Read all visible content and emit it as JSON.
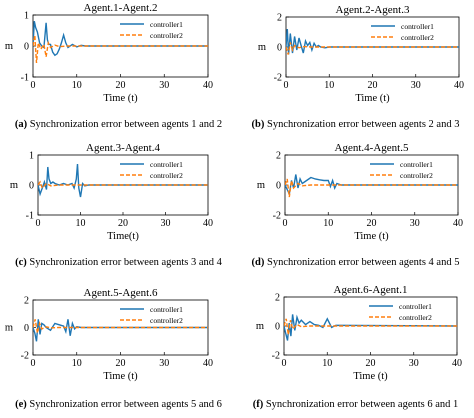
{
  "colors": {
    "controller1": "#1f77b4",
    "controller2": "#ff7f0e",
    "axis": "#000000",
    "background": "#ffffff"
  },
  "chart_data": [
    {
      "type": "line",
      "title": "Agent.1-Agent.2",
      "xlabel": "Time (t)",
      "ylabel": "m",
      "xlim": [
        0,
        40
      ],
      "ylim": [
        -1,
        1
      ],
      "xticks": [
        "0",
        "10",
        "20",
        "30",
        "40"
      ],
      "yticks": [
        "-1",
        "0",
        "1"
      ],
      "legend_position": "top-right",
      "caption_label": "(a)",
      "caption_text": "Synchronization error between agents 1 and 2",
      "series": [
        {
          "name": "controller1",
          "style": "solid",
          "x": [
            0,
            0.3,
            0.6,
            1.0,
            1.5,
            2.0,
            2.5,
            3.0,
            3.3,
            3.6,
            4.0,
            4.5,
            5.0,
            5.5,
            6.0,
            6.5,
            7.0,
            7.5,
            8.0,
            9.0,
            10,
            11,
            12,
            40
          ],
          "y": [
            0,
            0.8,
            0.6,
            0.45,
            0.1,
            0,
            -0.05,
            0.75,
            0.2,
            0.05,
            0.05,
            -0.2,
            -0.3,
            -0.25,
            -0.1,
            0.1,
            0.35,
            0.1,
            -0.05,
            0.05,
            -0.03,
            0.02,
            0,
            0
          ]
        },
        {
          "name": "controller2",
          "style": "dashed",
          "x": [
            0,
            0.4,
            0.8,
            1.2,
            1.8,
            2.5,
            3.0,
            3.5,
            4.0,
            5.0,
            6.0,
            8.0,
            40
          ],
          "y": [
            0,
            0.35,
            -0.55,
            0.1,
            -0.1,
            0.05,
            -0.35,
            0.1,
            -0.05,
            0.03,
            -0.02,
            0,
            0
          ]
        }
      ]
    },
    {
      "type": "line",
      "title": "Agent.2-Agent.3",
      "xlabel": "Time (t)",
      "ylabel": "m",
      "xlim": [
        0,
        40
      ],
      "ylim": [
        -2,
        2
      ],
      "xticks": [
        "0",
        "10",
        "20",
        "30",
        "40"
      ],
      "yticks": [
        "-2",
        "0",
        "2"
      ],
      "legend_position": "top-right",
      "caption_label": "(b)",
      "caption_text": "Synchronization error between agents 2 and 3",
      "series": [
        {
          "name": "controller1",
          "style": "solid",
          "x": [
            0,
            0.3,
            0.6,
            1.0,
            1.5,
            2.0,
            2.5,
            3.0,
            3.5,
            4.0,
            4.5,
            5.0,
            5.5,
            6.0,
            6.5,
            7.0,
            7.5,
            8.0,
            9.0,
            10,
            40
          ],
          "y": [
            0,
            1.2,
            -0.5,
            0.9,
            -0.4,
            0.7,
            -0.2,
            0.6,
            0.1,
            -0.4,
            0.4,
            0.1,
            0.3,
            -0.2,
            0.25,
            0,
            0.1,
            0,
            -0.05,
            0,
            0
          ]
        },
        {
          "name": "controller2",
          "style": "dashed",
          "x": [
            0,
            0.5,
            1.0,
            1.5,
            2.0,
            3.0,
            4.0,
            6.0,
            40
          ],
          "y": [
            0,
            -0.5,
            0.3,
            -0.2,
            0.1,
            -0.05,
            0.03,
            0,
            0
          ]
        }
      ]
    },
    {
      "type": "line",
      "title": "Agent.3-Agent.4",
      "xlabel": "Time(t)",
      "ylabel": "m",
      "xlim": [
        0,
        40
      ],
      "ylim": [
        -1,
        1
      ],
      "xticks": [
        "0",
        "10",
        "20",
        "30",
        "40"
      ],
      "yticks": [
        "-1",
        "0",
        "1"
      ],
      "legend_position": "top-right",
      "caption_label": "(c)",
      "caption_text": "Synchronization error between agents 3 and 4",
      "series": [
        {
          "name": "controller1",
          "style": "solid",
          "x": [
            0,
            0.5,
            1.0,
            1.5,
            2.0,
            2.3,
            2.6,
            3.0,
            3.5,
            4.0,
            5.0,
            6.0,
            7.0,
            8.0,
            8.5,
            9.0,
            9.3,
            9.6,
            10.0,
            10.5,
            11,
            12,
            40
          ],
          "y": [
            0,
            -0.3,
            -0.1,
            0.1,
            -0.15,
            0.6,
            0.2,
            0.05,
            0.1,
            0.05,
            0,
            0.05,
            0,
            0.05,
            -0.1,
            0.2,
            0.7,
            -0.1,
            -0.4,
            0.05,
            -0.03,
            0,
            0
          ]
        },
        {
          "name": "controller2",
          "style": "dashed",
          "x": [
            0,
            0.5,
            1.0,
            2.0,
            3.0,
            5.0,
            40
          ],
          "y": [
            0,
            0.1,
            -0.1,
            0.05,
            -0.03,
            0,
            0
          ]
        }
      ]
    },
    {
      "type": "line",
      "title": "Agent.4-Agent.5",
      "xlabel": "Time (t)",
      "ylabel": "m",
      "xlim": [
        0,
        40
      ],
      "ylim": [
        -2,
        2
      ],
      "xticks": [
        "0",
        "10",
        "20",
        "30",
        "40"
      ],
      "yticks": [
        "-2",
        "0",
        "2"
      ],
      "legend_position": "top-right",
      "caption_label": "(d)",
      "caption_text": "Synchronization error between agents 4 and 5",
      "series": [
        {
          "name": "controller1",
          "style": "solid",
          "x": [
            0,
            0.5,
            1.0,
            1.5,
            2.0,
            2.5,
            3.0,
            3.5,
            4.0,
            5.0,
            6.0,
            7.0,
            8.0,
            9.0,
            10.0,
            10.5,
            11.0,
            11.5,
            12.0,
            13.0,
            40
          ],
          "y": [
            0,
            -0.3,
            -0.6,
            0.3,
            -0.2,
            0.7,
            -0.2,
            0.4,
            0.1,
            0.3,
            0.5,
            0.4,
            0.35,
            0.3,
            0.3,
            -0.1,
            0.3,
            -0.2,
            0.1,
            0,
            0
          ]
        },
        {
          "name": "controller2",
          "style": "dashed",
          "x": [
            0,
            0.5,
            1.0,
            1.5,
            2.0,
            3.0,
            4.0,
            6.0,
            40
          ],
          "y": [
            0,
            0.4,
            -0.8,
            0.3,
            -0.2,
            0.1,
            -0.05,
            0,
            0
          ]
        }
      ]
    },
    {
      "type": "line",
      "title": "Agent.5-Agent.6",
      "xlabel": "Time (t)",
      "ylabel": "m",
      "xlim": [
        0,
        40
      ],
      "ylim": [
        -2,
        2
      ],
      "xticks": [
        "0",
        "10",
        "20",
        "30",
        "40"
      ],
      "yticks": [
        "-2",
        "0",
        "2"
      ],
      "legend_position": "top-right",
      "caption_label": "(e)",
      "caption_text": "Synchronization error between agents 5 and 6",
      "series": [
        {
          "name": "controller1",
          "style": "solid",
          "x": [
            0,
            0.4,
            0.8,
            1.2,
            1.6,
            2.0,
            2.5,
            3.0,
            4.0,
            5.0,
            6.0,
            7.0,
            7.5,
            8.0,
            8.5,
            9.0,
            9.5,
            10.0,
            11.0,
            12.0,
            40
          ],
          "y": [
            0,
            -0.4,
            -1.0,
            0.6,
            -0.5,
            0.3,
            0.2,
            0.0,
            -0.2,
            0.3,
            0.2,
            0.1,
            -0.3,
            0.6,
            -0.6,
            0.3,
            -0.1,
            0.05,
            0,
            0,
            0
          ]
        },
        {
          "name": "controller2",
          "style": "dashed",
          "x": [
            0,
            0.5,
            1.0,
            1.5,
            2.0,
            3.0,
            4.0,
            6.0,
            40
          ],
          "y": [
            0,
            0.6,
            -0.4,
            0.3,
            -0.1,
            0.05,
            -0.02,
            0,
            0
          ]
        }
      ]
    },
    {
      "type": "line",
      "title": "Agent.6-Agent.1",
      "xlabel": "Time (t)",
      "ylabel": "m",
      "xlim": [
        0,
        40
      ],
      "ylim": [
        -2,
        2
      ],
      "xticks": [
        "0",
        "10",
        "20",
        "30",
        "40"
      ],
      "yticks": [
        "-2",
        "0",
        "2"
      ],
      "legend_position": "top-right",
      "caption_label": "(f)",
      "caption_text": "Synchronization error between agents 6 and 1",
      "series": [
        {
          "name": "controller1",
          "style": "solid",
          "x": [
            0,
            0.4,
            0.8,
            1.2,
            1.6,
            2.0,
            2.5,
            3.0,
            3.5,
            4.0,
            5.0,
            6.0,
            7.0,
            8.0,
            9.0,
            10.0,
            11.0,
            12.0,
            40
          ],
          "y": [
            0,
            -0.5,
            -1.0,
            0.2,
            -0.7,
            0.8,
            -0.3,
            0.6,
            0.2,
            0.4,
            0.1,
            0.3,
            0.1,
            0.05,
            -0.1,
            0.5,
            -0.1,
            0.05,
            0
          ]
        },
        {
          "name": "controller2",
          "style": "dashed",
          "x": [
            0,
            0.5,
            1.0,
            1.5,
            2.0,
            3.0,
            4.0,
            6.0,
            40
          ],
          "y": [
            0,
            0.5,
            -0.6,
            0.4,
            -0.2,
            0.1,
            -0.05,
            0,
            0
          ]
        }
      ]
    }
  ]
}
